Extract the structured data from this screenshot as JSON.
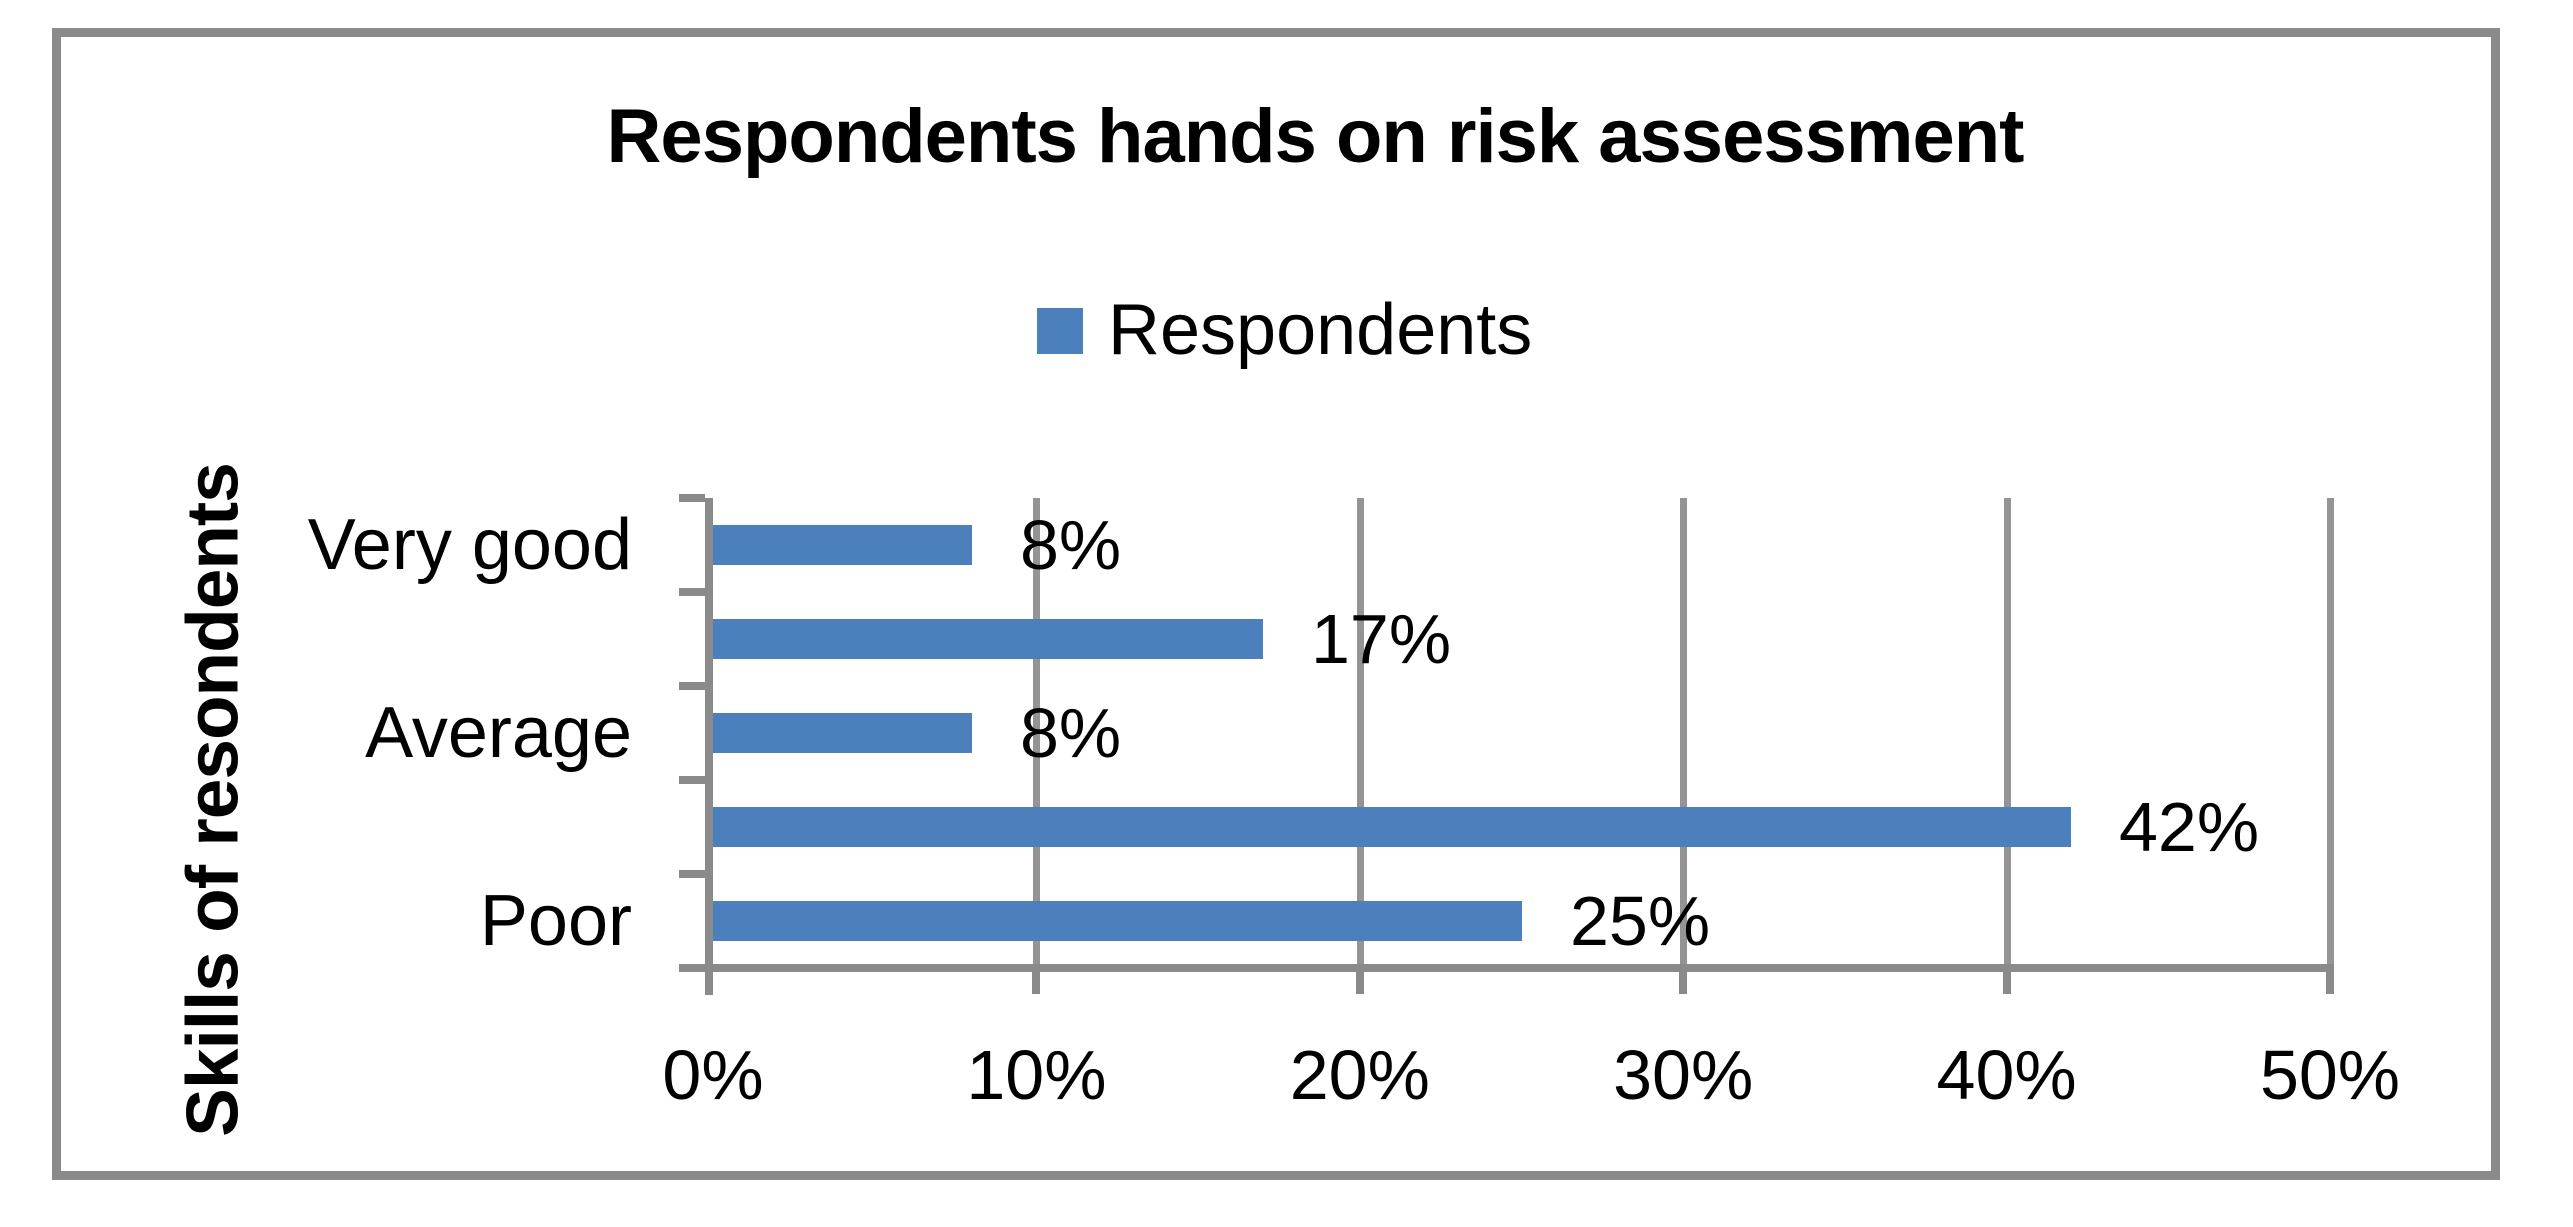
{
  "chart": {
    "title": "Respondents hands on risk assessment",
    "legend_label": "Respondents",
    "y_axis_title": "Skills of resondents"
  },
  "chart_data": {
    "type": "bar",
    "orientation": "horizontal",
    "title": "Respondents hands on risk assessment",
    "ylabel": "Skills of resondents",
    "xlabel": "",
    "legend": {
      "position": "top",
      "entries": [
        "Respondents"
      ]
    },
    "series": [
      {
        "name": "Respondents",
        "values": [
          8,
          17,
          8,
          42,
          25
        ]
      }
    ],
    "bars_top_to_bottom": [
      {
        "category_label": "Very good",
        "value": 8,
        "data_label": "8%"
      },
      {
        "category_label": "",
        "value": 17,
        "data_label": "17%"
      },
      {
        "category_label": "Average",
        "value": 8,
        "data_label": "8%"
      },
      {
        "category_label": "",
        "value": 42,
        "data_label": "42%"
      },
      {
        "category_label": "Poor",
        "value": 25,
        "data_label": "25%"
      }
    ],
    "x_axis": {
      "ticks": [
        "0%",
        "10%",
        "20%",
        "30%",
        "40%",
        "50%"
      ],
      "min": 0,
      "max": 50
    },
    "grid": true,
    "colors": {
      "bar": "#4C80BC",
      "axis": "#8A8A8A",
      "gridline": "#949494",
      "frame": "#8A8A8A",
      "text": "#000000"
    }
  }
}
